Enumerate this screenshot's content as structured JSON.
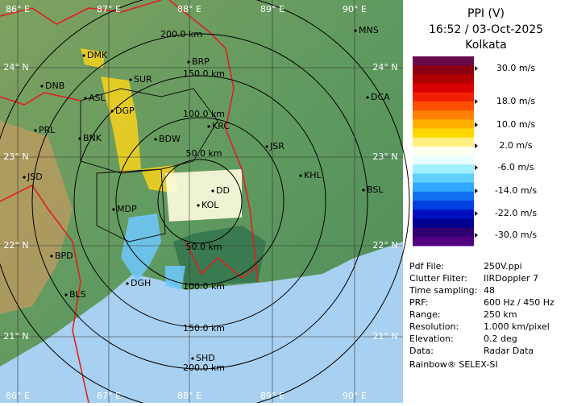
{
  "header": {
    "title": "PPI (V)",
    "time": "16:52 / 03-Oct-2025",
    "site": "Kolkata"
  },
  "colorbar": {
    "colors": [
      "#6a0a4a",
      "#8a0010",
      "#b00000",
      "#d80000",
      "#f02000",
      "#ff5000",
      "#ff8000",
      "#ffb000",
      "#ffd800",
      "#fff080",
      "#fffff0",
      "#e8ffff",
      "#a0f0ff",
      "#60d0ff",
      "#30a8ff",
      "#1070f0",
      "#0040e0",
      "#0010c0",
      "#000090",
      "#300070",
      "#500080"
    ],
    "labels": [
      "30.0 m/s",
      "18.0 m/s",
      "10.0 m/s",
      "2.0 m/s",
      "-6.0 m/s",
      "-14.0 m/s",
      "-22.0 m/s",
      "-30.0 m/s"
    ]
  },
  "map": {
    "lon_labels": [
      "86° E",
      "87° E",
      "88° E",
      "89° E",
      "90° E"
    ],
    "lat_labels": [
      "24° N",
      "23° N",
      "22° N",
      "21° N"
    ],
    "range_labels": [
      "200.0 km",
      "150.0 km",
      "100.0 km",
      "50.0 km",
      "50.0 km",
      "100.0 km",
      "150.0 km",
      "200.0 km"
    ],
    "cities": [
      "MNS",
      "DMK",
      "BRP",
      "SUR",
      "DNB",
      "ASL",
      "DGP",
      "DCA",
      "PRL",
      "KRC",
      "BNK",
      "BDW",
      "JSR",
      "KHL",
      "JSD",
      "BSL",
      "DD",
      "KOL",
      "MDP",
      "BPD",
      "DGH",
      "BLS",
      "SHD"
    ]
  },
  "info": {
    "rows": [
      [
        "Pdf File:",
        "250V.ppi"
      ],
      [
        "Clutter Filter:",
        "IIRDoppler 7"
      ],
      [
        "Time sampling:",
        "48"
      ],
      [
        "PRF:",
        "600 Hz / 450 Hz"
      ],
      [
        "Range:",
        "250 km"
      ],
      [
        "Resolution:",
        "1.000 km/pixel"
      ],
      [
        "Elevation:",
        "0.2 deg"
      ],
      [
        "Data:",
        "Radar Data"
      ]
    ],
    "footer": "Rainbow® SELEX-SI"
  }
}
